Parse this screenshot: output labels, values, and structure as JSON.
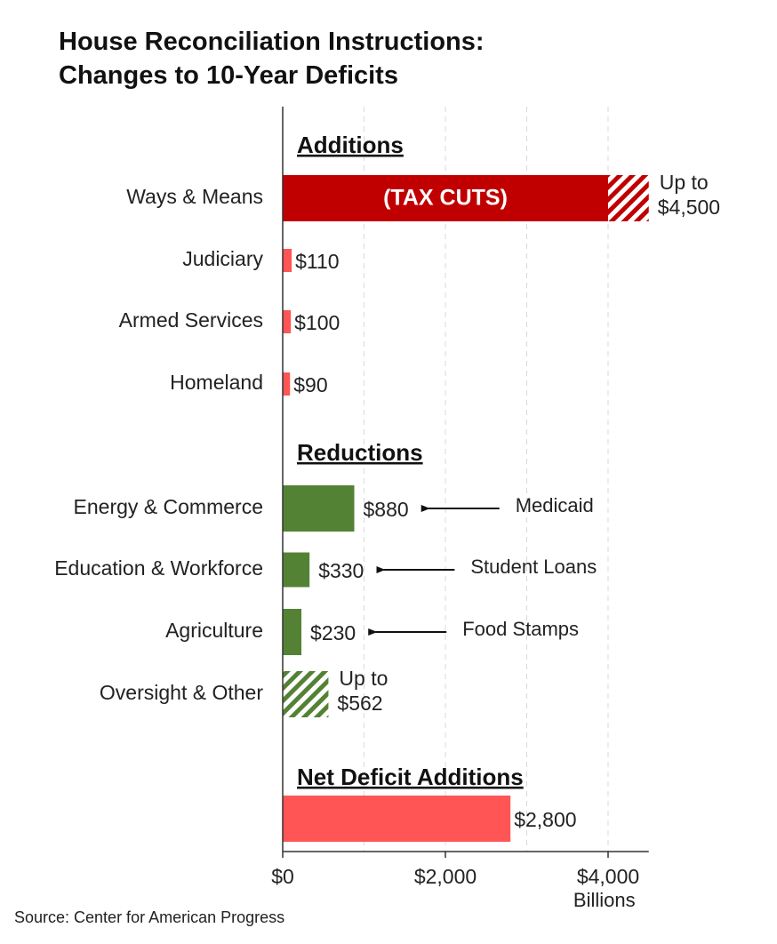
{
  "title_line1": "House Reconciliation Instructions:",
  "title_line2": "Changes to 10-Year Deficits",
  "source": "Source: Center for American Progress",
  "colors": {
    "addition": "#c00000",
    "addition_light": "#ff5555",
    "reduction": "#548235",
    "net": "#ff5555",
    "grid": "#d9d9d9",
    "axis": "#333333"
  },
  "chart_data": {
    "type": "bar",
    "orientation": "horizontal",
    "xlabel": "Billions",
    "xlim": [
      0,
      4500
    ],
    "xticks": [
      0,
      2000,
      4000
    ],
    "xtick_labels": [
      "$0",
      "$2,000",
      "$4,000"
    ],
    "grid": true,
    "sections": [
      {
        "label": "Additions",
        "items": [
          {
            "category": "Ways & Means",
            "value": 4000,
            "upper": 4500,
            "in_bar_label": "(TAX CUTS)",
            "label_line1": "Up to",
            "label_line2": "$4,500",
            "color": "#c00000"
          },
          {
            "category": "Judiciary",
            "value": 110,
            "label": "$110",
            "color": "#ff5555"
          },
          {
            "category": "Armed Services",
            "value": 100,
            "label": "$100",
            "color": "#ff5555"
          },
          {
            "category": "Homeland",
            "value": 90,
            "label": "$90",
            "color": "#ff5555"
          }
        ]
      },
      {
        "label": "Reductions",
        "items": [
          {
            "category": "Energy & Commerce",
            "value": 880,
            "label": "$880",
            "annotation": "Medicaid",
            "color": "#548235"
          },
          {
            "category": "Education & Workforce",
            "value": 330,
            "label": "$330",
            "annotation": "Student Loans",
            "color": "#548235"
          },
          {
            "category": "Agriculture",
            "value": 230,
            "label": "$230",
            "annotation": "Food Stamps",
            "color": "#548235"
          },
          {
            "category": "Oversight & Other",
            "value": 0,
            "upper": 562,
            "label_line1": "Up to",
            "label_line2": "$562",
            "color": "#548235"
          }
        ]
      },
      {
        "label": "Net Deficit Additions",
        "items": [
          {
            "category": "",
            "value": 2800,
            "label": "$2,800",
            "color": "#ff5555"
          }
        ]
      }
    ]
  }
}
